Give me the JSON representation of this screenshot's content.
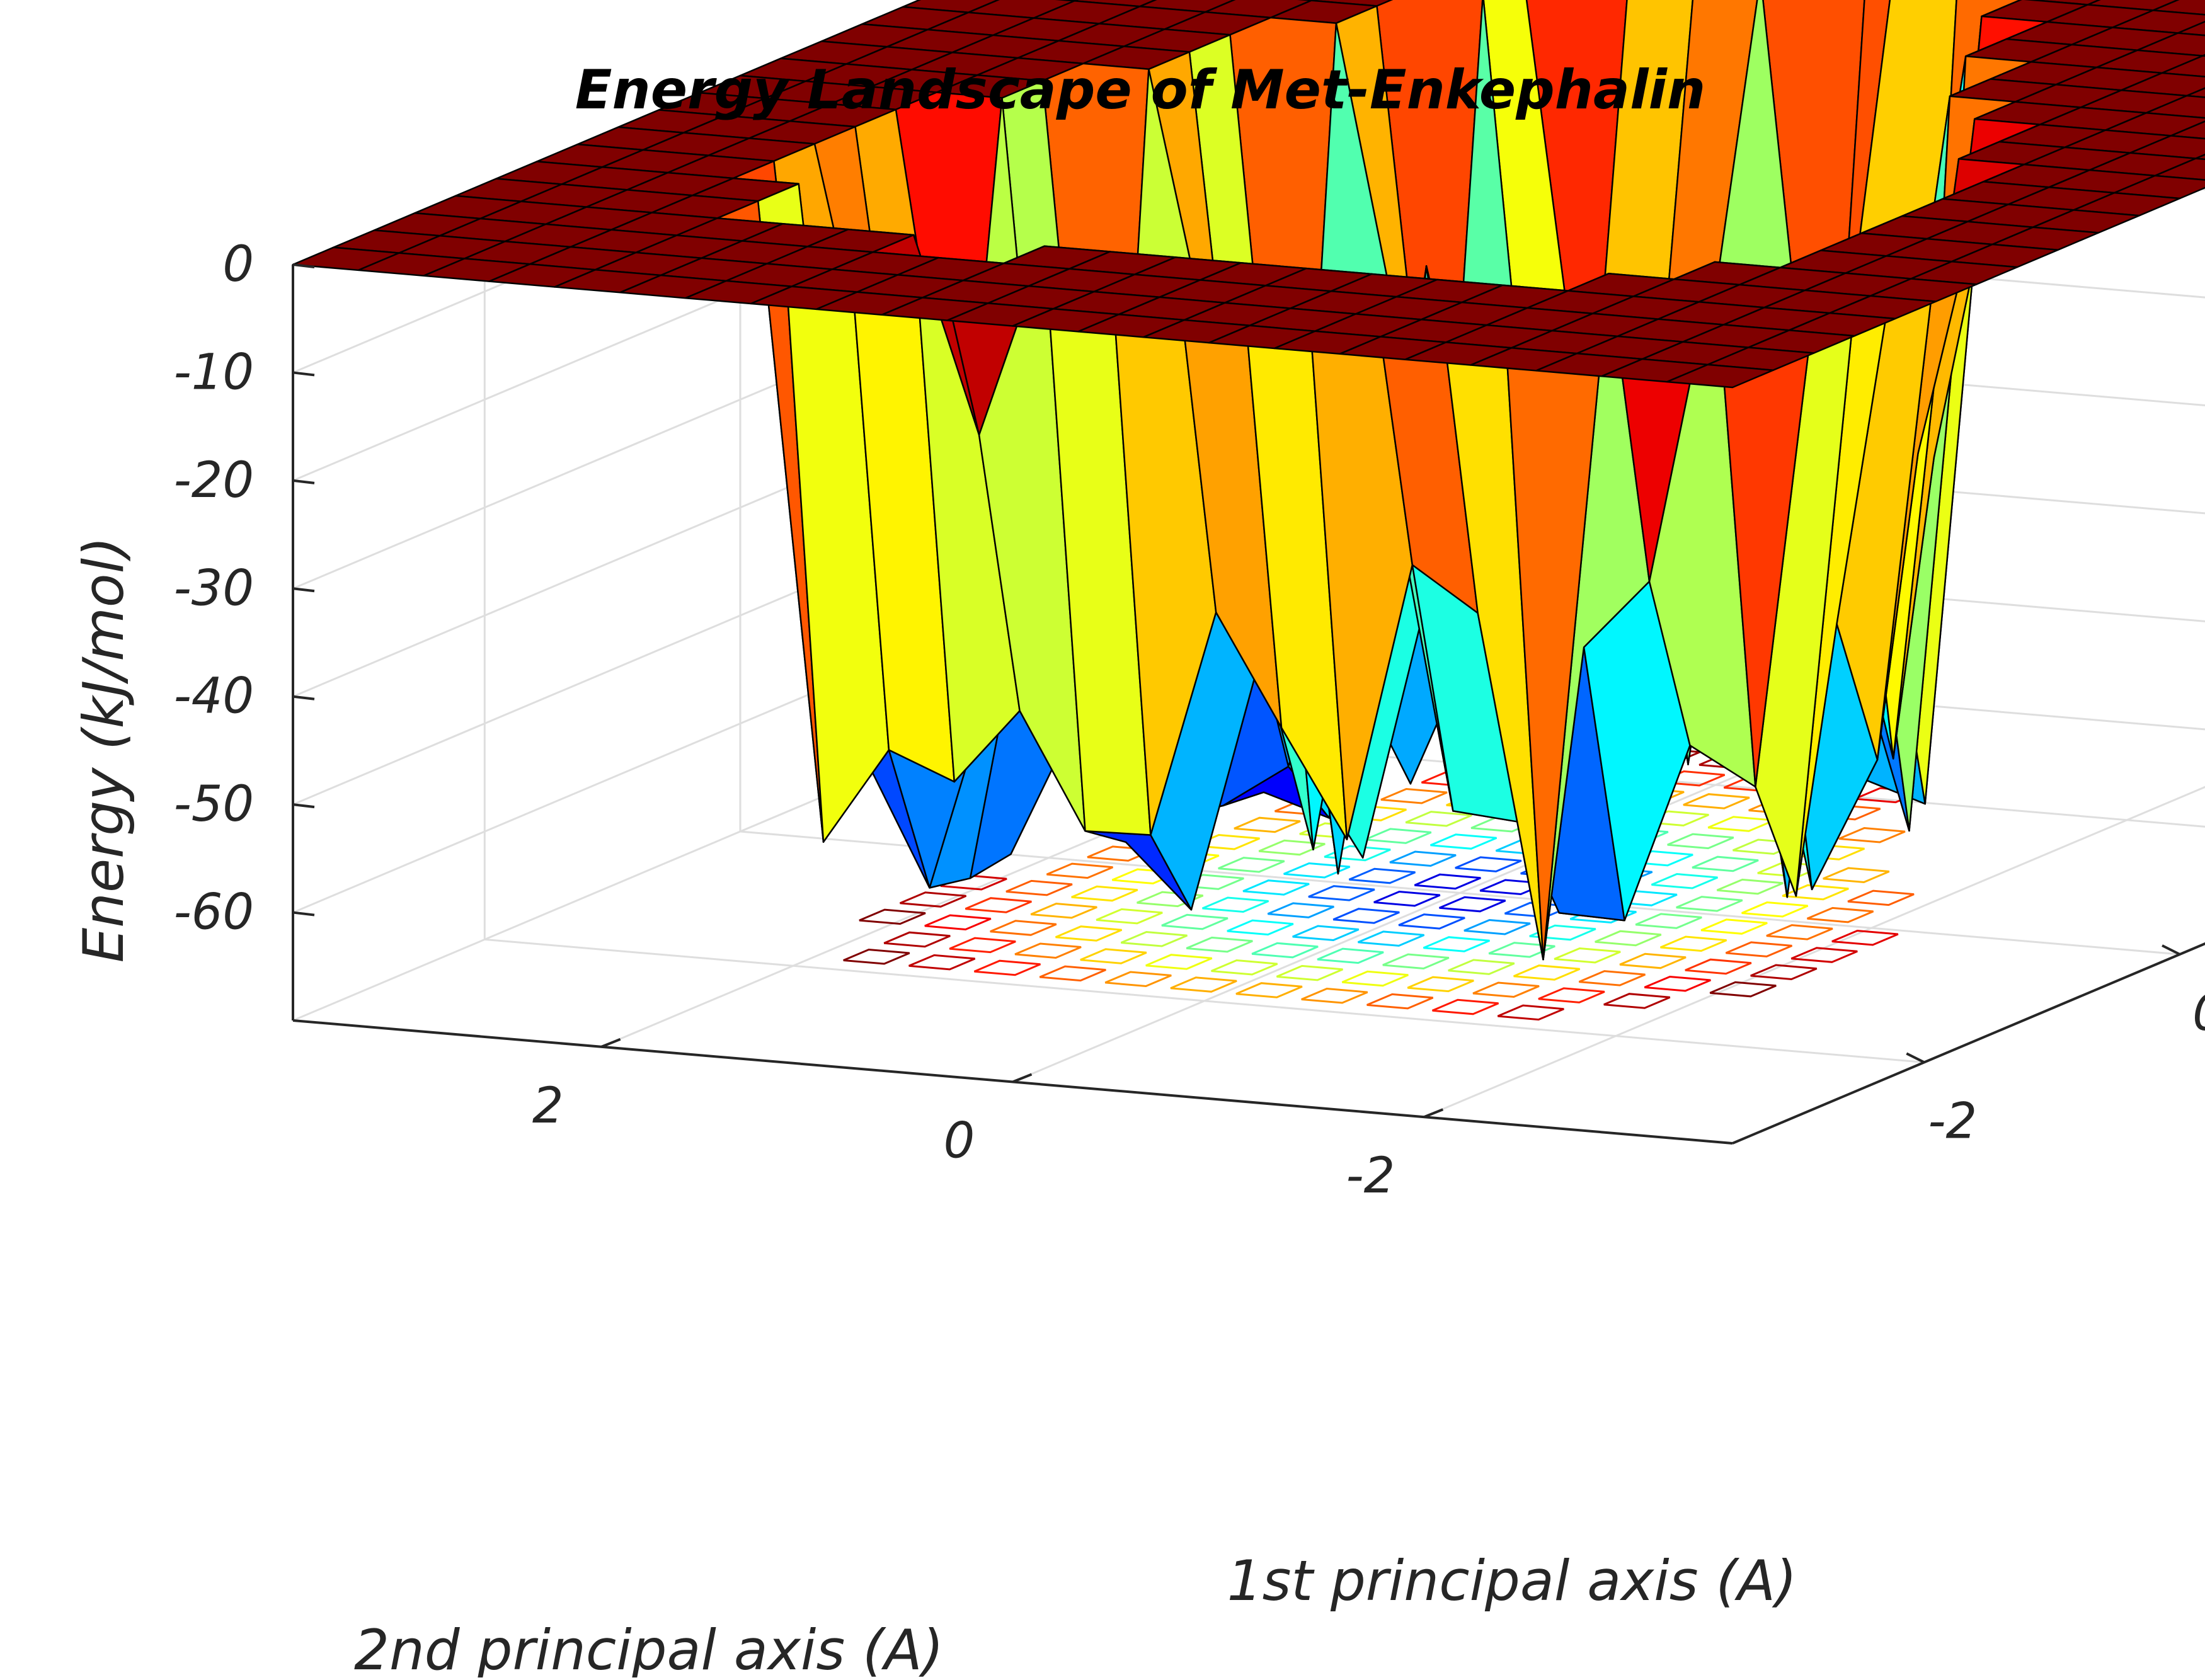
{
  "chart_data": {
    "type": "surface3d",
    "title": "Energy Landscape of Met-Enkephalin",
    "xlabel": "1st principal axis (A)",
    "ylabel": "2nd principal axis (A)",
    "zlabel": "Energy (kJ/mol)",
    "x_ticks": [
      "-2",
      "0",
      "2"
    ],
    "y_ticks": [
      "2",
      "0",
      "-2"
    ],
    "z_ticks": [
      "0",
      "-10",
      "-20",
      "-30",
      "-40",
      "-50",
      "-60"
    ],
    "x_range": [
      -3.5,
      3.5
    ],
    "y_range": [
      -3.5,
      3.5
    ],
    "z_range": [
      -70,
      0
    ],
    "plateau_value": 0,
    "grid": true,
    "colormap": "jet",
    "colormap_stops": [
      "#00008f",
      "#0000ff",
      "#0080ff",
      "#00ffff",
      "#80ff80",
      "#ffff00",
      "#ff8000",
      "#ff0000",
      "#800000"
    ],
    "contour_projection": true
  }
}
